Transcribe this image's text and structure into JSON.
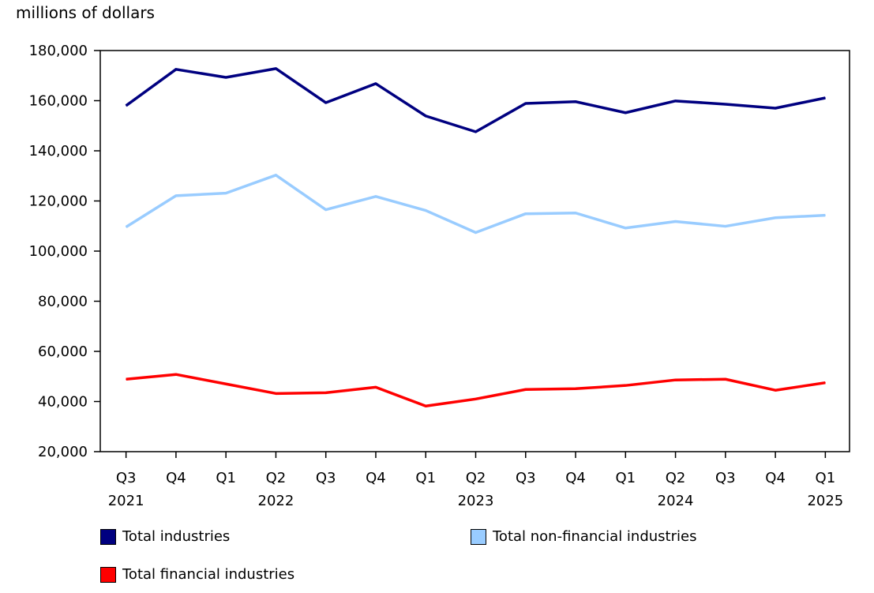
{
  "chart_data": {
    "type": "line",
    "ylabel": "millions of dollars",
    "ylim": [
      20000,
      180000
    ],
    "yticks": [
      20000,
      40000,
      60000,
      80000,
      100000,
      120000,
      140000,
      160000,
      180000
    ],
    "ytick_labels": [
      "20,000",
      "40,000",
      "60,000",
      "80,000",
      "100,000",
      "120,000",
      "140,000",
      "160,000",
      "180,000"
    ],
    "categories": [
      "Q3",
      "Q4",
      "Q1",
      "Q2",
      "Q3",
      "Q4",
      "Q1",
      "Q2",
      "Q3",
      "Q4",
      "Q1",
      "Q2",
      "Q3",
      "Q4",
      "Q1"
    ],
    "year_labels": [
      {
        "index": 0,
        "label": "2021"
      },
      {
        "index": 3,
        "label": "2022"
      },
      {
        "index": 7,
        "label": "2023"
      },
      {
        "index": 11,
        "label": "2024"
      },
      {
        "index": 14,
        "label": "2025"
      }
    ],
    "grid": false,
    "legend_placement": "bottom",
    "series": [
      {
        "name": "Total industries",
        "color": "#000080",
        "values": [
          158000,
          172500,
          169300,
          172800,
          159200,
          166800,
          153900,
          147600,
          158900,
          159600,
          155200,
          159900,
          158600,
          157000,
          161100
        ]
      },
      {
        "name": "Total non-financial industries",
        "color": "#99ccff",
        "values": [
          109600,
          122100,
          123100,
          130300,
          116500,
          121800,
          116200,
          107400,
          114900,
          115200,
          109200,
          111800,
          109900,
          113300,
          114300
        ]
      },
      {
        "name": "Total financial industries",
        "color": "#ff0000",
        "values": [
          48900,
          50800,
          47000,
          43200,
          43500,
          45700,
          38200,
          41000,
          44800,
          45100,
          46400,
          48600,
          48900,
          44500,
          47500
        ]
      }
    ]
  }
}
